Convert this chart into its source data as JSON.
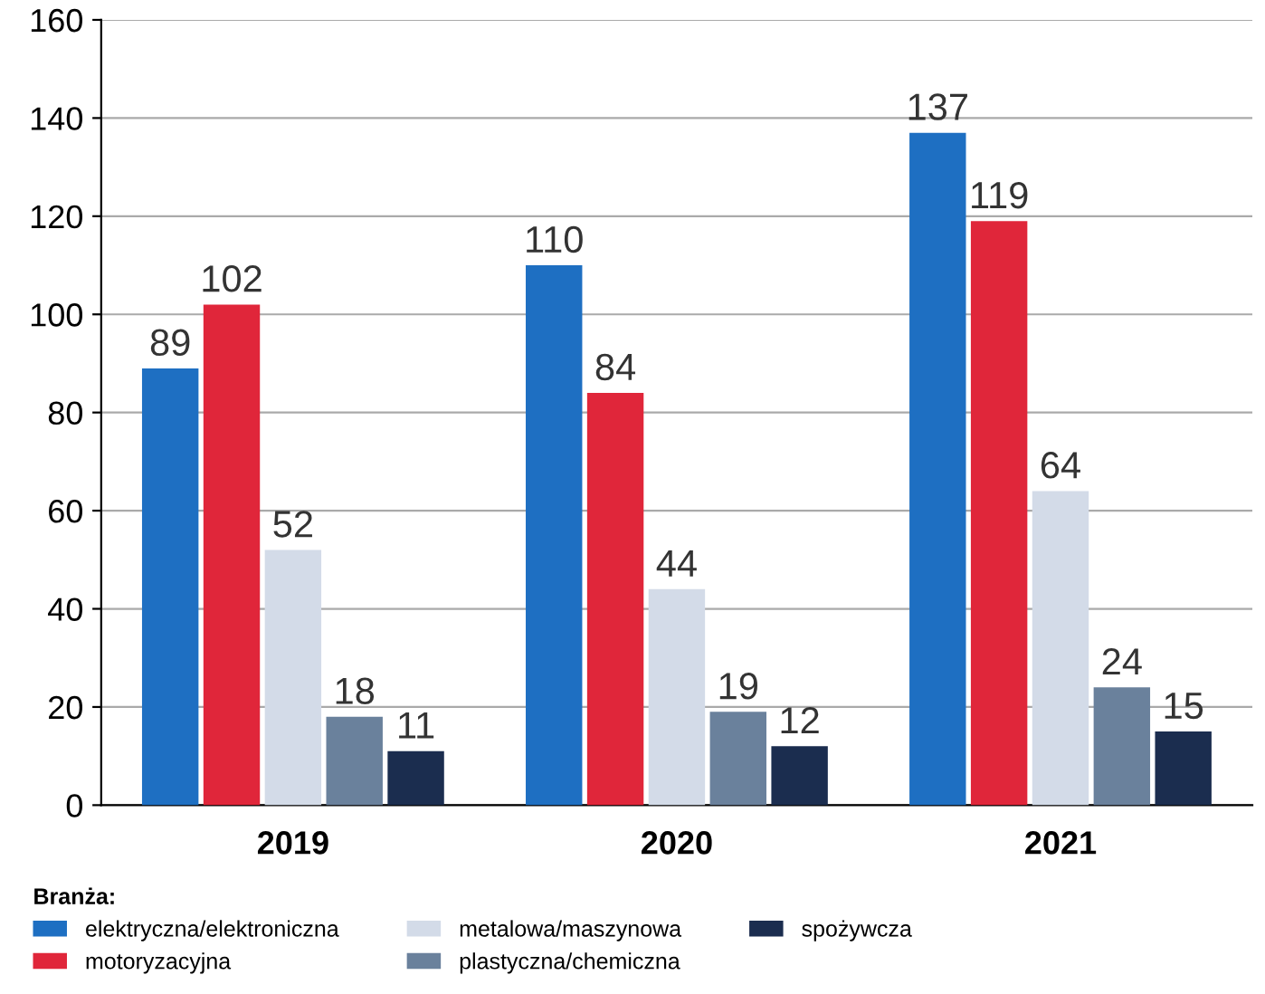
{
  "chart_data": {
    "type": "bar",
    "categories": [
      "2019",
      "2020",
      "2021"
    ],
    "series": [
      {
        "name": "elektryczna/elektroniczna",
        "color": "#1e6fc2",
        "values": [
          89,
          110,
          137
        ]
      },
      {
        "name": "motoryzacyjna",
        "color": "#e0263a",
        "values": [
          102,
          84,
          119
        ]
      },
      {
        "name": "metalowa/maszynowa",
        "color": "#d3dbe8",
        "values": [
          52,
          44,
          64
        ]
      },
      {
        "name": "plastyczna/chemiczna",
        "color": "#6a819c",
        "values": [
          18,
          19,
          24
        ]
      },
      {
        "name": "spożywcza",
        "color": "#1b2d4f",
        "values": [
          11,
          12,
          15
        ]
      }
    ],
    "legend_title": "Branża:",
    "legend": "bottom",
    "data_labels": true,
    "grid": "y",
    "ylim": [
      0,
      160
    ],
    "yticks": [
      0,
      20,
      40,
      60,
      80,
      100,
      120,
      140,
      160
    ]
  }
}
